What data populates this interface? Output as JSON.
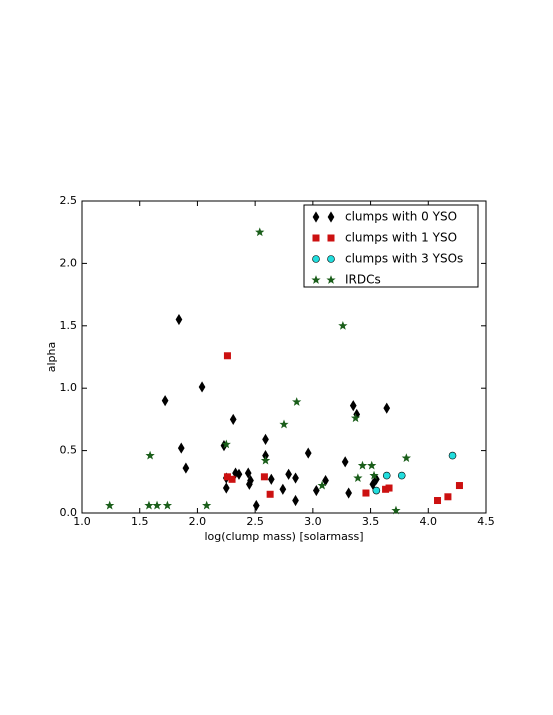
{
  "chart_data": {
    "type": "scatter",
    "x_label": "log(clump mass) [solarmass]",
    "y_label": "alpha",
    "xlim": [
      1.0,
      4.5
    ],
    "ylim": [
      0.0,
      2.5
    ],
    "xticks": [
      {
        "value": 1.0,
        "label": "1.0"
      },
      {
        "value": 1.5,
        "label": "1.5"
      },
      {
        "value": 2.0,
        "label": "2.0"
      },
      {
        "value": 2.5,
        "label": "2.5"
      },
      {
        "value": 3.0,
        "label": "3.0"
      },
      {
        "value": 3.5,
        "label": "3.5"
      },
      {
        "value": 4.0,
        "label": "4.0"
      },
      {
        "value": 4.5,
        "label": "4.5"
      }
    ],
    "yticks": [
      {
        "value": 0.0,
        "label": "0.0"
      },
      {
        "value": 0.5,
        "label": "0.5"
      },
      {
        "value": 1.0,
        "label": "1.0"
      },
      {
        "value": 1.5,
        "label": "1.5"
      },
      {
        "value": 2.0,
        "label": "2.0"
      },
      {
        "value": 2.5,
        "label": "2.5"
      }
    ],
    "grid": false,
    "legend": "upper right",
    "series": [
      {
        "name": "clumps with 0 YSO",
        "color": "#000000",
        "marker": "diamond",
        "x": [
          1.84,
          1.72,
          2.04,
          1.86,
          1.9,
          2.23,
          2.31,
          2.25,
          2.25,
          2.33,
          2.36,
          2.44,
          2.45,
          2.46,
          2.51,
          2.59,
          2.59,
          2.64,
          2.74,
          2.79,
          2.85,
          2.85,
          2.96,
          3.03,
          3.11,
          3.28,
          3.31,
          3.35,
          3.38,
          3.52,
          3.55,
          3.64
        ],
        "values": [
          1.55,
          0.9,
          1.01,
          0.52,
          0.36,
          0.54,
          0.75,
          0.28,
          0.2,
          0.32,
          0.31,
          0.32,
          0.23,
          0.26,
          0.06,
          0.59,
          0.46,
          0.27,
          0.19,
          0.31,
          0.28,
          0.1,
          0.48,
          0.18,
          0.26,
          0.41,
          0.16,
          0.86,
          0.79,
          0.23,
          0.27,
          0.84
        ]
      },
      {
        "name": "clumps with 1 YSO",
        "color": "#cc1111",
        "marker": "square",
        "x": [
          2.26,
          2.26,
          2.3,
          2.58,
          2.63,
          3.46,
          3.63,
          3.66,
          4.08,
          4.17,
          4.27
        ],
        "values": [
          1.26,
          0.29,
          0.27,
          0.29,
          0.15,
          0.16,
          0.19,
          0.2,
          0.1,
          0.13,
          0.22
        ]
      },
      {
        "name": "clumps with 3 YSOs",
        "color": "#22dddd",
        "marker": "circle",
        "x": [
          3.55,
          3.64,
          3.77,
          4.21
        ],
        "values": [
          0.18,
          0.3,
          0.3,
          0.46
        ]
      },
      {
        "name": "IRDCs",
        "color": "#1a5e1a",
        "marker": "star",
        "x": [
          1.24,
          1.59,
          1.58,
          1.65,
          1.74,
          2.08,
          2.25,
          2.54,
          2.59,
          2.75,
          2.86,
          3.08,
          3.26,
          3.37,
          3.39,
          3.43,
          3.51,
          3.53,
          3.72,
          3.81
        ],
        "values": [
          0.06,
          0.46,
          0.06,
          0.06,
          0.06,
          0.06,
          0.55,
          2.25,
          0.42,
          0.71,
          0.89,
          0.22,
          1.5,
          0.76,
          0.28,
          0.38,
          0.38,
          0.3,
          0.02,
          0.44
        ]
      }
    ]
  }
}
